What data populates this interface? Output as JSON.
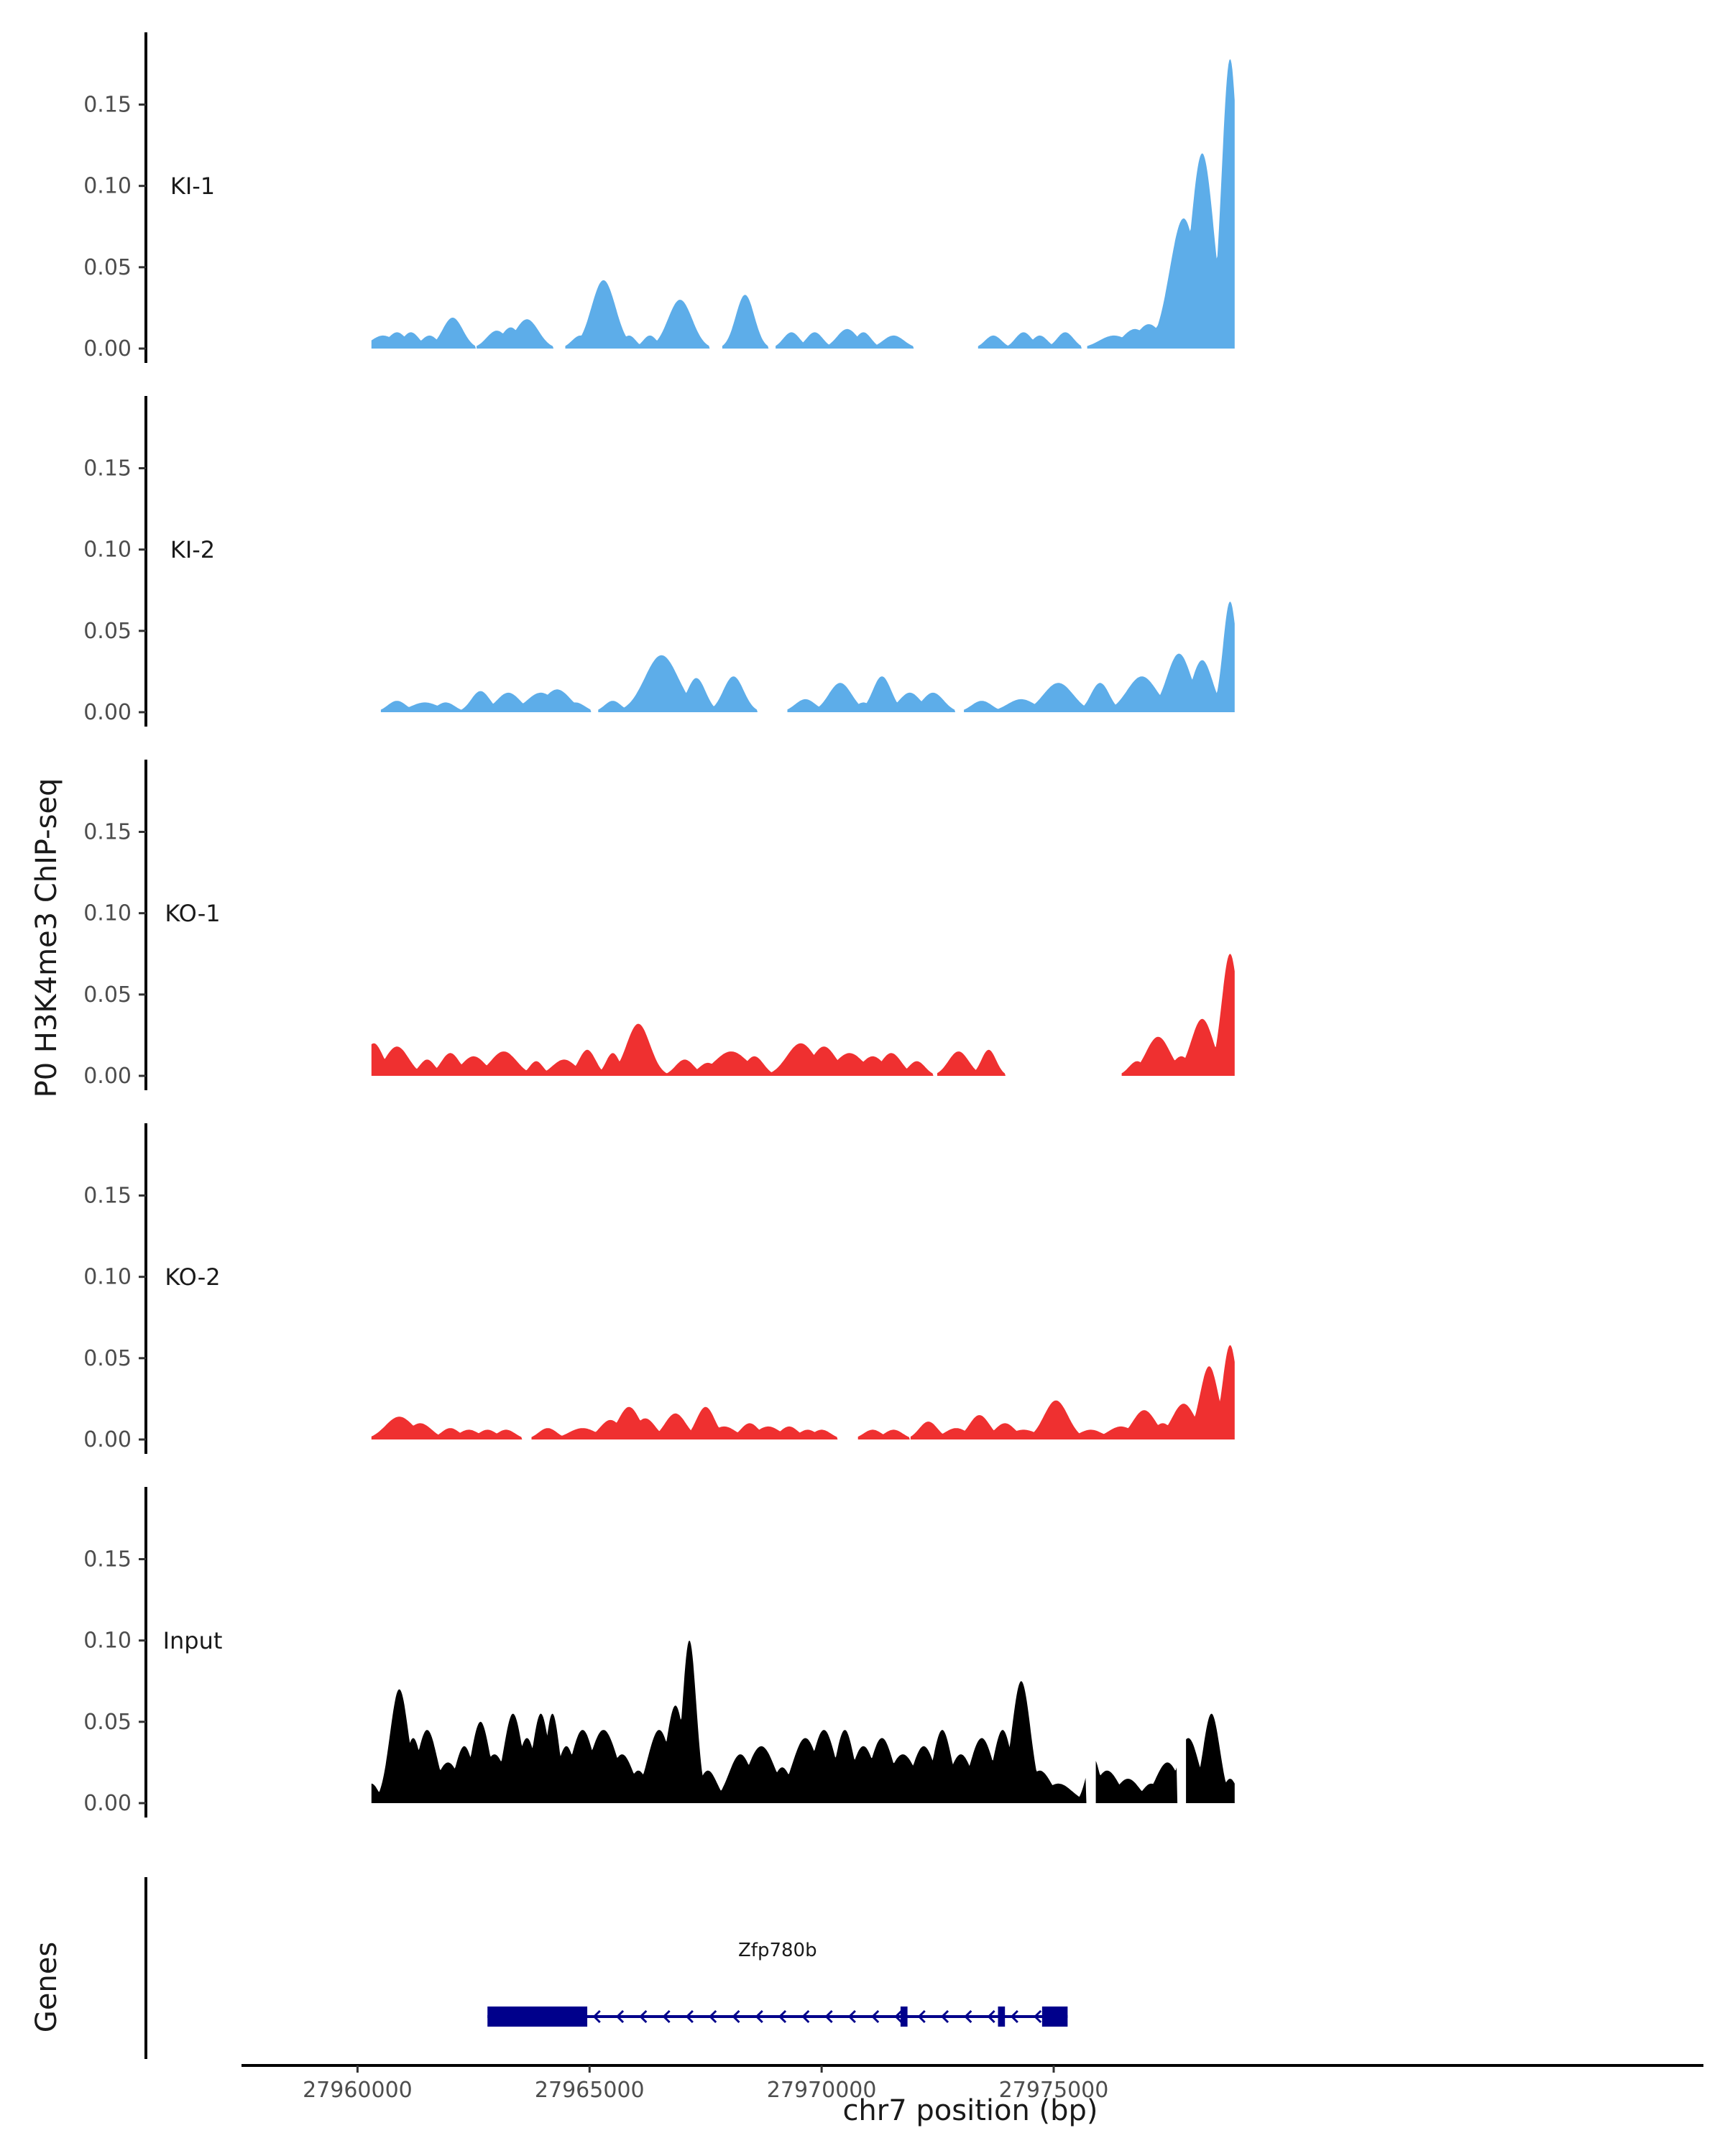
{
  "chart_data": {
    "type": "area",
    "ylabel": "P0 H3K4me3 ChIP-seq",
    "xlabel": "chr7 position (bp)",
    "xlim": [
      27957500,
      27989000
    ],
    "ylim": [
      0,
      0.19
    ],
    "y_ticks": [
      0.0,
      0.05,
      0.1,
      0.15
    ],
    "y_tick_labels": [
      "0.00",
      "0.05",
      "0.10",
      "0.15"
    ],
    "x_ticks": [
      27960000,
      27965000,
      27970000,
      27975000
    ],
    "x_tick_labels": [
      "27960000",
      "27965000",
      "27970000",
      "27975000"
    ],
    "grid": false,
    "series": [
      {
        "name": "KI-1",
        "color": "#5DADE9",
        "peaks": [
          [
            27960550,
            0.008,
            260
          ],
          [
            27960850,
            0.01,
            200
          ],
          [
            27961150,
            0.01,
            180
          ],
          [
            27961550,
            0.008,
            180
          ],
          [
            27962050,
            0.019,
            220
          ],
          [
            27963000,
            0.011,
            220
          ],
          [
            27963300,
            0.013,
            200
          ],
          [
            27963650,
            0.018,
            250
          ],
          [
            27964800,
            0.008,
            180
          ],
          [
            27965300,
            0.042,
            260
          ],
          [
            27965850,
            0.008,
            150
          ],
          [
            27966300,
            0.008,
            150
          ],
          [
            27966950,
            0.03,
            260
          ],
          [
            27968350,
            0.033,
            200
          ],
          [
            27969350,
            0.01,
            180
          ],
          [
            27969850,
            0.01,
            180
          ],
          [
            27970550,
            0.012,
            220
          ],
          [
            27970900,
            0.01,
            170
          ],
          [
            27971550,
            0.008,
            230
          ],
          [
            27973700,
            0.008,
            180
          ],
          [
            27974350,
            0.01,
            180
          ],
          [
            27974700,
            0.008,
            170
          ],
          [
            27975250,
            0.01,
            180
          ],
          [
            27976300,
            0.008,
            320
          ],
          [
            27976750,
            0.012,
            260
          ],
          [
            27977050,
            0.015,
            260
          ],
          [
            27977400,
            0.018,
            230
          ],
          [
            27977800,
            0.08,
            300
          ],
          [
            27978200,
            0.12,
            250
          ],
          [
            27978800,
            0.178,
            180
          ]
        ]
      },
      {
        "name": "KI-2",
        "color": "#5DADE9",
        "peaks": [
          [
            27960850,
            0.007,
            200
          ],
          [
            27961450,
            0.006,
            300
          ],
          [
            27961900,
            0.006,
            200
          ],
          [
            27962650,
            0.013,
            200
          ],
          [
            27963250,
            0.012,
            250
          ],
          [
            27963950,
            0.012,
            300
          ],
          [
            27964300,
            0.014,
            280
          ],
          [
            27964700,
            0.006,
            200
          ],
          [
            27965500,
            0.007,
            180
          ],
          [
            27966000,
            0.006,
            170
          ],
          [
            27966550,
            0.035,
            360
          ],
          [
            27967300,
            0.021,
            200
          ],
          [
            27968100,
            0.022,
            220
          ],
          [
            27969650,
            0.008,
            220
          ],
          [
            27970400,
            0.018,
            250
          ],
          [
            27970900,
            0.006,
            170
          ],
          [
            27971300,
            0.022,
            200
          ],
          [
            27971900,
            0.012,
            230
          ],
          [
            27972400,
            0.012,
            230
          ],
          [
            27973450,
            0.007,
            220
          ],
          [
            27974300,
            0.008,
            300
          ],
          [
            27975100,
            0.018,
            320
          ],
          [
            27976000,
            0.018,
            200
          ],
          [
            27976900,
            0.022,
            320
          ],
          [
            27977700,
            0.036,
            260
          ],
          [
            27978200,
            0.032,
            220
          ],
          [
            27978800,
            0.068,
            150
          ]
        ]
      },
      {
        "name": "KO-1",
        "color": "#EF3030",
        "peaks": [
          [
            27960350,
            0.02,
            200
          ],
          [
            27960850,
            0.018,
            250
          ],
          [
            27961500,
            0.01,
            170
          ],
          [
            27962000,
            0.014,
            200
          ],
          [
            27962500,
            0.012,
            250
          ],
          [
            27963150,
            0.015,
            280
          ],
          [
            27963850,
            0.009,
            150
          ],
          [
            27964450,
            0.01,
            250
          ],
          [
            27964950,
            0.016,
            180
          ],
          [
            27965500,
            0.014,
            150
          ],
          [
            27966050,
            0.032,
            250
          ],
          [
            27967050,
            0.01,
            200
          ],
          [
            27967550,
            0.008,
            200
          ],
          [
            27968050,
            0.015,
            350
          ],
          [
            27968550,
            0.012,
            200
          ],
          [
            27969550,
            0.02,
            300
          ],
          [
            27970050,
            0.018,
            260
          ],
          [
            27970600,
            0.014,
            300
          ],
          [
            27971100,
            0.012,
            250
          ],
          [
            27971500,
            0.014,
            220
          ],
          [
            27972050,
            0.009,
            180
          ],
          [
            27972950,
            0.015,
            220
          ],
          [
            27973600,
            0.016,
            160
          ],
          [
            27976800,
            0.009,
            180
          ],
          [
            27977250,
            0.024,
            260
          ],
          [
            27977750,
            0.012,
            200
          ],
          [
            27978200,
            0.035,
            240
          ],
          [
            27978800,
            0.075,
            180
          ]
        ]
      },
      {
        "name": "KO-2",
        "color": "#EF3030",
        "peaks": [
          [
            27960900,
            0.014,
            300
          ],
          [
            27961350,
            0.01,
            250
          ],
          [
            27962000,
            0.007,
            200
          ],
          [
            27962400,
            0.006,
            220
          ],
          [
            27962800,
            0.006,
            200
          ],
          [
            27963200,
            0.006,
            200
          ],
          [
            27964100,
            0.007,
            200
          ],
          [
            27964850,
            0.007,
            300
          ],
          [
            27965450,
            0.012,
            230
          ],
          [
            27965850,
            0.02,
            230
          ],
          [
            27966200,
            0.013,
            220
          ],
          [
            27966850,
            0.016,
            230
          ],
          [
            27967500,
            0.02,
            200
          ],
          [
            27967900,
            0.008,
            260
          ],
          [
            27968450,
            0.01,
            200
          ],
          [
            27968850,
            0.008,
            260
          ],
          [
            27969300,
            0.008,
            200
          ],
          [
            27969700,
            0.006,
            200
          ],
          [
            27970000,
            0.006,
            200
          ],
          [
            27971100,
            0.006,
            200
          ],
          [
            27971550,
            0.006,
            200
          ],
          [
            27972300,
            0.011,
            200
          ],
          [
            27972900,
            0.007,
            250
          ],
          [
            27973400,
            0.015,
            220
          ],
          [
            27973950,
            0.01,
            220
          ],
          [
            27974350,
            0.006,
            300
          ],
          [
            27975050,
            0.024,
            260
          ],
          [
            27975800,
            0.006,
            260
          ],
          [
            27976450,
            0.008,
            280
          ],
          [
            27976950,
            0.018,
            250
          ],
          [
            27977350,
            0.01,
            200
          ],
          [
            27977800,
            0.022,
            250
          ],
          [
            27978350,
            0.045,
            200
          ],
          [
            27978800,
            0.058,
            160
          ]
        ]
      },
      {
        "name": "Input",
        "color": "#000000",
        "peaks": [
          [
            27960300,
            0.012,
            150
          ],
          [
            27960650,
            0.012,
            150
          ],
          [
            27960900,
            0.07,
            200
          ],
          [
            27961200,
            0.04,
            180
          ],
          [
            27961500,
            0.045,
            220
          ],
          [
            27961950,
            0.025,
            250
          ],
          [
            27962300,
            0.035,
            200
          ],
          [
            27962650,
            0.05,
            200
          ],
          [
            27962950,
            0.03,
            250
          ],
          [
            27963350,
            0.055,
            200
          ],
          [
            27963650,
            0.04,
            200
          ],
          [
            27963950,
            0.055,
            180
          ],
          [
            27964200,
            0.055,
            150
          ],
          [
            27964500,
            0.035,
            200
          ],
          [
            27964850,
            0.045,
            250
          ],
          [
            27965300,
            0.045,
            300
          ],
          [
            27965700,
            0.03,
            250
          ],
          [
            27966050,
            0.02,
            200
          ],
          [
            27966500,
            0.045,
            250
          ],
          [
            27966850,
            0.06,
            200
          ],
          [
            27967150,
            0.1,
            150
          ],
          [
            27967550,
            0.02,
            200
          ],
          [
            27967900,
            0.008,
            150
          ],
          [
            27968250,
            0.03,
            250
          ],
          [
            27968700,
            0.035,
            300
          ],
          [
            27969150,
            0.022,
            200
          ],
          [
            27969650,
            0.04,
            280
          ],
          [
            27970050,
            0.045,
            250
          ],
          [
            27970500,
            0.045,
            200
          ],
          [
            27970900,
            0.035,
            250
          ],
          [
            27971300,
            0.04,
            250
          ],
          [
            27971750,
            0.03,
            300
          ],
          [
            27972200,
            0.035,
            250
          ],
          [
            27972600,
            0.045,
            200
          ],
          [
            27973000,
            0.03,
            250
          ],
          [
            27973450,
            0.04,
            250
          ],
          [
            27973900,
            0.045,
            200
          ],
          [
            27974300,
            0.075,
            200
          ],
          [
            27974700,
            0.02,
            250
          ],
          [
            27975100,
            0.012,
            300
          ],
          [
            27975850,
            0.028,
            150
          ],
          [
            27976150,
            0.02,
            250
          ],
          [
            27976600,
            0.015,
            250
          ],
          [
            27977100,
            0.012,
            200
          ],
          [
            27977450,
            0.025,
            250
          ],
          [
            27977900,
            0.04,
            230
          ],
          [
            27978400,
            0.055,
            180
          ],
          [
            27978800,
            0.015,
            150
          ]
        ],
        "gaps": [
          [
            27975700,
            27975900
          ],
          [
            27977650,
            27977850
          ]
        ]
      }
    ],
    "genes": {
      "ylabel": "Genes",
      "items": [
        {
          "name": "Zfp780b",
          "strand": "-",
          "start": 27962800,
          "end": 27975300,
          "exons": [
            [
              27962800,
              27964950
            ],
            [
              27971700,
              27971850
            ],
            [
              27973800,
              27973950
            ],
            [
              27974750,
              27975300
            ]
          ],
          "color": "#00008B"
        }
      ]
    }
  }
}
